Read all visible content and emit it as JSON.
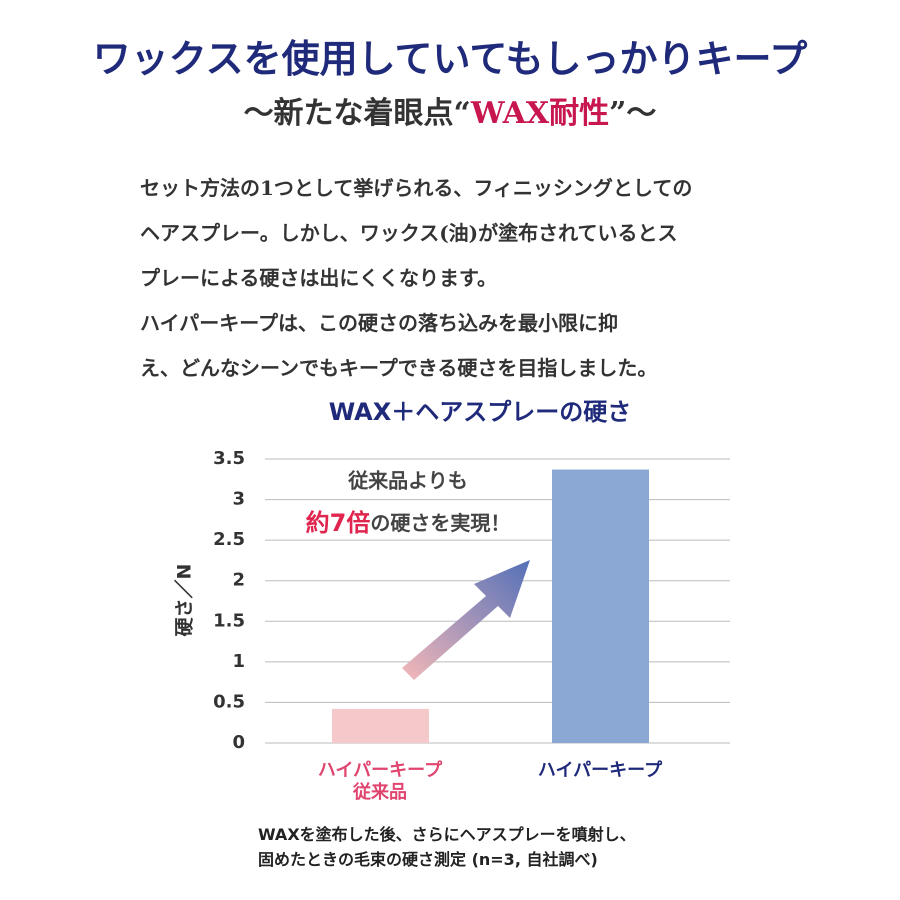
{
  "header": {
    "title": "ワックスを使用していてもしっかりキープ",
    "subtitle_before": "〜新たな着眼点“",
    "subtitle_highlight": "WAX耐性",
    "subtitle_after": "”〜"
  },
  "body": [
    "セット方法の1つとして挙げられる、フィニッシングとしての",
    "ヘアスプレー。しかし、ワックス(油)が塗布されているとス",
    "プレーによる硬さは出にくくなります。",
    "ハイパーキープは、この硬さの落ち込みを最小限に抑",
    "え、どんなシーンでもキープできる硬さを目指しました。"
  ],
  "chart_data": {
    "type": "bar",
    "title": "WAX＋ヘアスプレーの硬さ",
    "y_label": "硬さ／N",
    "categories": [
      "ハイパーキープ\n従来品",
      "ハイパーキープ"
    ],
    "category_colors": [
      "#e0456f",
      "#1f2a7a"
    ],
    "values": [
      0.42,
      3.37
    ],
    "colors": [
      "#f5c9c9",
      "#8ba8d4"
    ],
    "ylim": [
      0,
      3.5
    ],
    "yticks": [
      0,
      0.5,
      1,
      1.5,
      2,
      2.5,
      3,
      3.5
    ],
    "grid": true,
    "annotation": {
      "line1": "従来品よりも",
      "highlight": "約7倍",
      "rest": "の硬さを実現！"
    }
  },
  "note": [
    "WAXを塗布した後、さらにヘアスプレーを噴射し、",
    "固めたときの毛束の硬さ測定 (n=3, 自社調べ)"
  ]
}
